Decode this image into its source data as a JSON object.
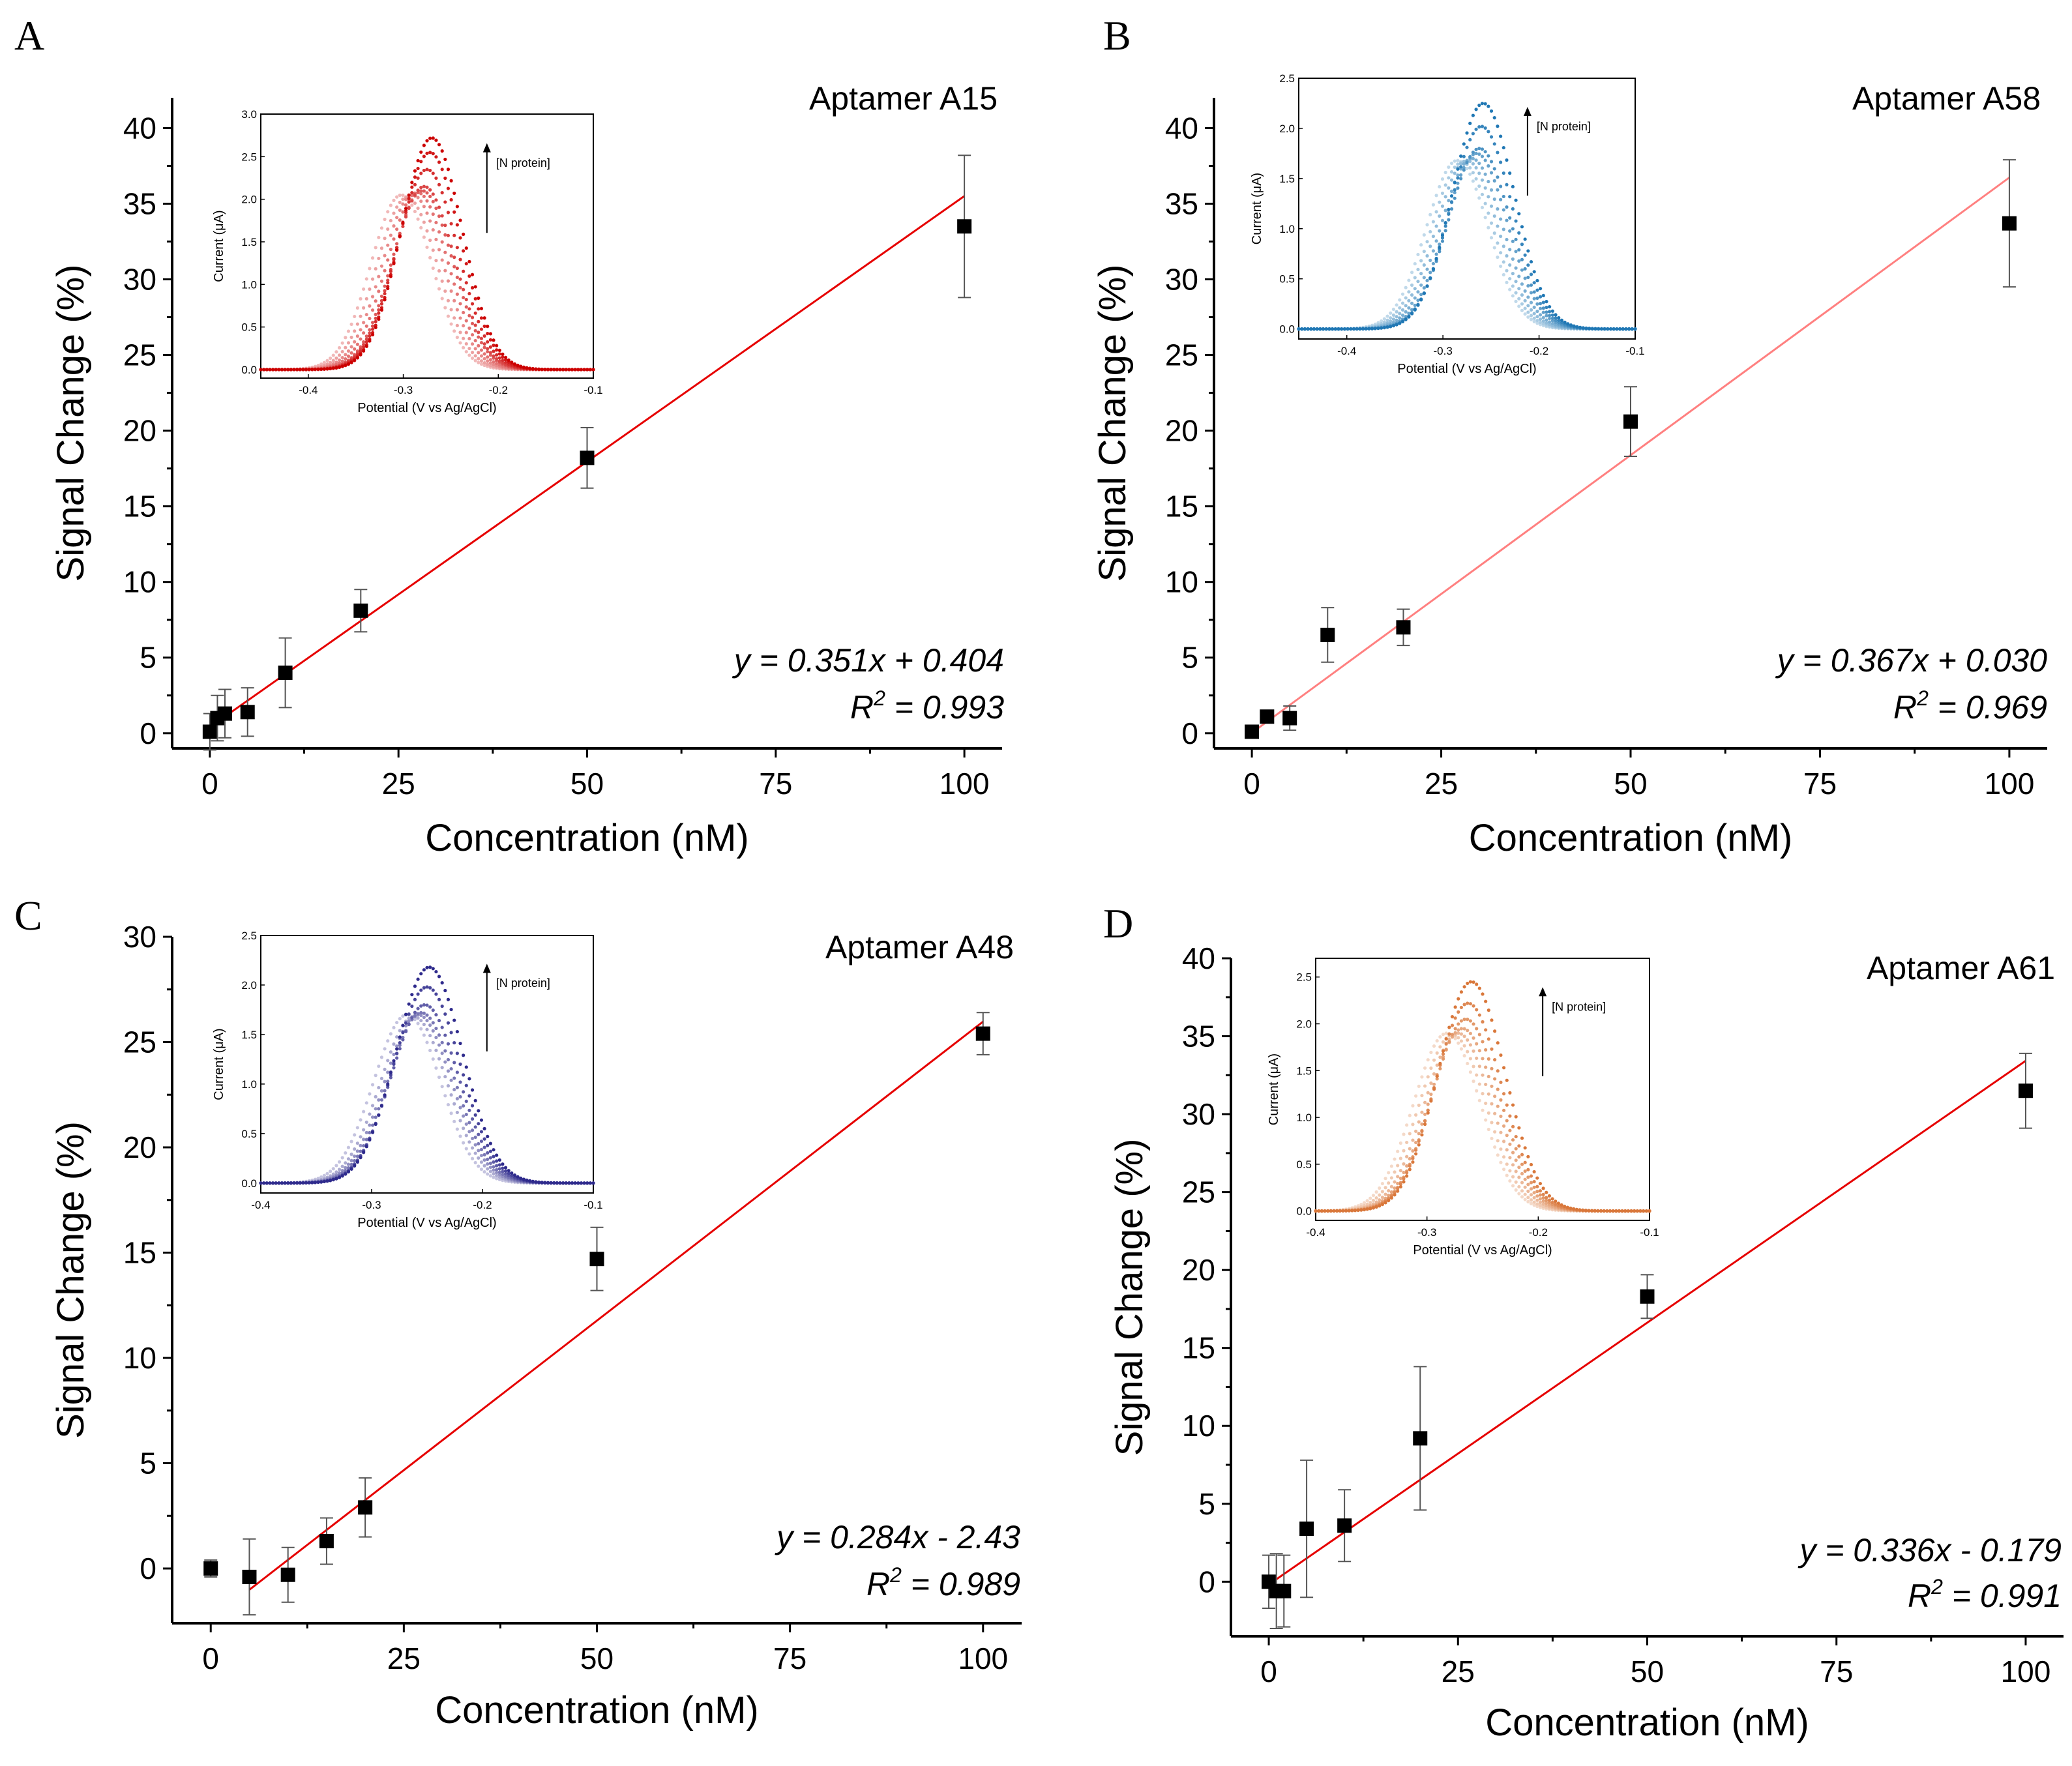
{
  "figure": {
    "panels": [
      {
        "id": "A",
        "letter": "A",
        "aptamer": "Aptamer A15",
        "equation": "y = 0.351x + 0.404",
        "r2_value": "0.993",
        "inset": {
          "ylabel": "Current (μA)",
          "xlabel": "Potential (V vs Ag/AgCl)",
          "arrow_label": "[N protein]",
          "color": "#cc0000"
        }
      },
      {
        "id": "B",
        "letter": "B",
        "aptamer": "Aptamer A58",
        "equation": "y = 0.367x + 0.030",
        "r2_value": "0.969",
        "inset": {
          "ylabel": "Current (μA)",
          "xlabel": "Potential (V vs Ag/AgCl)",
          "arrow_label": "[N protein]",
          "color": "#1f77b4"
        }
      },
      {
        "id": "C",
        "letter": "C",
        "aptamer": "Aptamer A48",
        "equation": "y = 0.284x - 2.43",
        "r2_value": "0.989",
        "inset": {
          "ylabel": "Current (μA)",
          "xlabel": "Potential (V vs Ag/AgCl)",
          "arrow_label": "[N protein]",
          "color": "#2e2a8c"
        }
      },
      {
        "id": "D",
        "letter": "D",
        "aptamer": "Aptamer A61",
        "equation": "y = 0.336x - 0.179",
        "r2_value": "0.991",
        "inset": {
          "ylabel": "Current (μA)",
          "xlabel": "Potential (V vs Ag/AgCl)",
          "arrow_label": "[N protein]",
          "color": "#d9773a"
        }
      }
    ]
  },
  "chart_data": [
    {
      "panel": "A",
      "type": "scatter",
      "title": "Aptamer A15",
      "xlabel": "Concentration (nM)",
      "ylabel": "Signal Change (%)",
      "xlim": [
        -5,
        105
      ],
      "ylim": [
        -1,
        42
      ],
      "xticks": [
        0,
        25,
        50,
        75,
        100
      ],
      "yticks": [
        0,
        5,
        10,
        15,
        20,
        25,
        30,
        35,
        40
      ],
      "x": [
        0,
        1,
        2,
        5,
        10,
        20,
        50,
        100
      ],
      "y": [
        0.1,
        1.0,
        1.3,
        1.4,
        4.0,
        8.1,
        18.2,
        33.5
      ],
      "err": [
        1.2,
        1.5,
        1.6,
        1.6,
        2.3,
        1.4,
        2.0,
        4.7
      ],
      "fit": {
        "slope": 0.351,
        "intercept": 0.404,
        "x_range": [
          0,
          100
        ]
      },
      "fit_color": "#e60000",
      "inset": {
        "xlim": [
          -0.45,
          -0.1
        ],
        "ylim": [
          -0.1,
          3.0
        ],
        "xticks": [
          -0.4,
          -0.3,
          -0.2,
          -0.1
        ],
        "yticks": [
          0.0,
          0.5,
          1.0,
          1.5,
          2.0,
          2.5,
          3.0
        ],
        "curves": [
          {
            "peak_x": -0.302,
            "height": 2.05,
            "width": 0.032
          },
          {
            "peak_x": -0.296,
            "height": 2.02,
            "width": 0.032
          },
          {
            "peak_x": -0.29,
            "height": 2.05,
            "width": 0.032
          },
          {
            "peak_x": -0.285,
            "height": 2.08,
            "width": 0.032
          },
          {
            "peak_x": -0.28,
            "height": 2.1,
            "width": 0.032
          },
          {
            "peak_x": -0.278,
            "height": 2.15,
            "width": 0.032
          },
          {
            "peak_x": -0.275,
            "height": 2.35,
            "width": 0.032
          },
          {
            "peak_x": -0.272,
            "height": 2.55,
            "width": 0.032
          },
          {
            "peak_x": -0.27,
            "height": 2.72,
            "width": 0.032
          }
        ]
      }
    },
    {
      "panel": "B",
      "type": "scatter",
      "title": "Aptamer A58",
      "xlabel": "Concentration (nM)",
      "ylabel": "Signal Change (%)",
      "xlim": [
        -5,
        105
      ],
      "ylim": [
        -1,
        42
      ],
      "xticks": [
        0,
        25,
        50,
        75,
        100
      ],
      "yticks": [
        0,
        5,
        10,
        15,
        20,
        25,
        30,
        35,
        40
      ],
      "x": [
        0,
        2,
        5,
        10,
        20,
        50,
        100
      ],
      "y": [
        0.1,
        1.1,
        1.0,
        6.5,
        7.0,
        20.6,
        33.7
      ],
      "err": [
        0.2,
        0.3,
        0.8,
        1.8,
        1.2,
        2.3,
        4.2
      ],
      "fit": {
        "slope": 0.367,
        "intercept": 0.03,
        "x_range": [
          0,
          100
        ]
      },
      "fit_color": "#ff8080",
      "inset": {
        "xlim": [
          -0.45,
          -0.1
        ],
        "ylim": [
          -0.1,
          2.5
        ],
        "xticks": [
          -0.4,
          -0.3,
          -0.2,
          -0.1
        ],
        "yticks": [
          0.0,
          0.5,
          1.0,
          1.5,
          2.0,
          2.5
        ],
        "curves": [
          {
            "peak_x": -0.285,
            "height": 1.68,
            "width": 0.032
          },
          {
            "peak_x": -0.28,
            "height": 1.66,
            "width": 0.032
          },
          {
            "peak_x": -0.275,
            "height": 1.68,
            "width": 0.032
          },
          {
            "peak_x": -0.27,
            "height": 1.7,
            "width": 0.032
          },
          {
            "peak_x": -0.265,
            "height": 1.75,
            "width": 0.032
          },
          {
            "peak_x": -0.262,
            "height": 1.8,
            "width": 0.032
          },
          {
            "peak_x": -0.26,
            "height": 2.02,
            "width": 0.032
          },
          {
            "peak_x": -0.258,
            "height": 2.25,
            "width": 0.032
          }
        ]
      }
    },
    {
      "panel": "C",
      "type": "scatter",
      "title": "Aptamer A48",
      "xlabel": "Concentration (nM)",
      "ylabel": "Signal Change (%)",
      "xlim": [
        -5,
        105
      ],
      "ylim": [
        -2.6,
        30
      ],
      "xticks": [
        0,
        25,
        50,
        75,
        100
      ],
      "yticks": [
        0,
        5,
        10,
        15,
        20,
        25,
        30
      ],
      "x": [
        0,
        5,
        10,
        15,
        20,
        50,
        100
      ],
      "y": [
        0.0,
        -0.4,
        -0.3,
        1.3,
        2.9,
        14.7,
        25.4
      ],
      "err": [
        0.4,
        1.8,
        1.3,
        1.1,
        1.4,
        1.5,
        1.0
      ],
      "fit": {
        "slope": 0.284,
        "intercept": -2.43,
        "x_range": [
          5,
          100
        ]
      },
      "fit_color": "#e60000",
      "inset": {
        "xlim": [
          -0.4,
          -0.1
        ],
        "ylim": [
          -0.1,
          2.5
        ],
        "xticks": [
          -0.4,
          -0.3,
          -0.2,
          -0.1
        ],
        "yticks": [
          0.0,
          0.5,
          1.0,
          1.5,
          2.0,
          2.5
        ],
        "curves": [
          {
            "peak_x": -0.268,
            "height": 1.7,
            "width": 0.03
          },
          {
            "peak_x": -0.262,
            "height": 1.68,
            "width": 0.03
          },
          {
            "peak_x": -0.258,
            "height": 1.7,
            "width": 0.03
          },
          {
            "peak_x": -0.255,
            "height": 1.72,
            "width": 0.03
          },
          {
            "peak_x": -0.252,
            "height": 1.8,
            "width": 0.03
          },
          {
            "peak_x": -0.25,
            "height": 1.98,
            "width": 0.03
          },
          {
            "peak_x": -0.248,
            "height": 2.18,
            "width": 0.03
          }
        ]
      }
    },
    {
      "panel": "D",
      "type": "scatter",
      "title": "Aptamer A61",
      "xlabel": "Concentration (nM)",
      "ylabel": "Signal Change (%)",
      "xlim": [
        -5,
        105
      ],
      "ylim": [
        -3.5,
        40
      ],
      "xticks": [
        0,
        25,
        50,
        75,
        100
      ],
      "yticks": [
        0,
        5,
        10,
        15,
        20,
        25,
        30,
        35,
        40
      ],
      "x": [
        0,
        1,
        2,
        5,
        10,
        20,
        50,
        100
      ],
      "y": [
        0.0,
        -0.6,
        -0.6,
        3.4,
        3.6,
        9.2,
        18.3,
        31.5
      ],
      "err": [
        1.7,
        2.4,
        2.3,
        4.4,
        2.3,
        4.6,
        1.4,
        2.4
      ],
      "fit": {
        "slope": 0.336,
        "intercept": -0.179,
        "x_range": [
          0,
          100
        ]
      },
      "fit_color": "#e60000",
      "inset": {
        "xlim": [
          -0.4,
          -0.1
        ],
        "ylim": [
          -0.1,
          2.7
        ],
        "xticks": [
          -0.4,
          -0.3,
          -0.2,
          -0.1
        ],
        "yticks": [
          0.0,
          0.5,
          1.0,
          1.5,
          2.0,
          2.5
        ],
        "curves": [
          {
            "peak_x": -0.282,
            "height": 1.9,
            "width": 0.03
          },
          {
            "peak_x": -0.277,
            "height": 1.88,
            "width": 0.03
          },
          {
            "peak_x": -0.272,
            "height": 1.9,
            "width": 0.03
          },
          {
            "peak_x": -0.268,
            "height": 1.95,
            "width": 0.03
          },
          {
            "peak_x": -0.265,
            "height": 2.05,
            "width": 0.03
          },
          {
            "peak_x": -0.263,
            "height": 2.22,
            "width": 0.03
          },
          {
            "peak_x": -0.26,
            "height": 2.45,
            "width": 0.03
          }
        ]
      }
    }
  ]
}
